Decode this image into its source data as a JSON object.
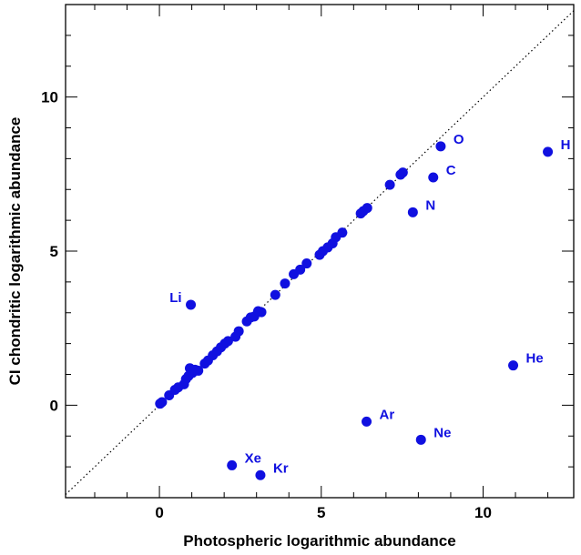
{
  "chart_data": {
    "type": "scatter",
    "title": "",
    "xlabel": "Photospheric logarithmic abundance",
    "ylabel": "CI chondritic logarithmic abundance",
    "xlim": [
      -2.9,
      12.8
    ],
    "ylim": [
      -3.0,
      13.0
    ],
    "xticks": [
      0,
      5,
      10
    ],
    "yticks": [
      0,
      5,
      10
    ],
    "reference_line": {
      "style": "dotted",
      "slope": 1,
      "intercept": 0
    },
    "marker_color": "#1010e0",
    "labeled_points": [
      {
        "label": "H",
        "x": 12.0,
        "y": 8.22
      },
      {
        "label": "O",
        "x": 8.69,
        "y": 8.4
      },
      {
        "label": "C",
        "x": 8.46,
        "y": 7.39
      },
      {
        "label": "N",
        "x": 7.83,
        "y": 6.26
      },
      {
        "label": "Li",
        "x": 0.97,
        "y": 3.26
      },
      {
        "label": "He",
        "x": 10.93,
        "y": 1.29
      },
      {
        "label": "Ar",
        "x": 6.4,
        "y": -0.53
      },
      {
        "label": "Ne",
        "x": 8.08,
        "y": -1.12
      },
      {
        "label": "Xe",
        "x": 2.24,
        "y": -1.95
      },
      {
        "label": "Kr",
        "x": 3.12,
        "y": -2.27
      }
    ],
    "points": [
      {
        "x": 0.02,
        "y": 0.05
      },
      {
        "x": 0.08,
        "y": 0.1
      },
      {
        "x": 0.3,
        "y": 0.32
      },
      {
        "x": 0.48,
        "y": 0.5
      },
      {
        "x": 0.58,
        "y": 0.58
      },
      {
        "x": 0.76,
        "y": 0.68
      },
      {
        "x": 0.82,
        "y": 0.85
      },
      {
        "x": 0.9,
        "y": 0.95
      },
      {
        "x": 0.94,
        "y": 1.2
      },
      {
        "x": 1.02,
        "y": 1.05
      },
      {
        "x": 1.1,
        "y": 1.15
      },
      {
        "x": 1.2,
        "y": 1.12
      },
      {
        "x": 1.4,
        "y": 1.35
      },
      {
        "x": 1.5,
        "y": 1.45
      },
      {
        "x": 1.65,
        "y": 1.62
      },
      {
        "x": 1.78,
        "y": 1.75
      },
      {
        "x": 1.9,
        "y": 1.88
      },
      {
        "x": 2.02,
        "y": 2.0
      },
      {
        "x": 2.12,
        "y": 2.08
      },
      {
        "x": 2.35,
        "y": 2.22
      },
      {
        "x": 2.45,
        "y": 2.4
      },
      {
        "x": 2.7,
        "y": 2.72
      },
      {
        "x": 2.82,
        "y": 2.85
      },
      {
        "x": 2.93,
        "y": 2.88
      },
      {
        "x": 3.05,
        "y": 3.05
      },
      {
        "x": 3.15,
        "y": 3.02
      },
      {
        "x": 3.58,
        "y": 3.58
      },
      {
        "x": 3.88,
        "y": 3.95
      },
      {
        "x": 4.15,
        "y": 4.25
      },
      {
        "x": 4.35,
        "y": 4.4
      },
      {
        "x": 4.55,
        "y": 4.6
      },
      {
        "x": 4.95,
        "y": 4.88
      },
      {
        "x": 5.05,
        "y": 5.0
      },
      {
        "x": 5.2,
        "y": 5.12
      },
      {
        "x": 5.35,
        "y": 5.25
      },
      {
        "x": 5.45,
        "y": 5.45
      },
      {
        "x": 5.65,
        "y": 5.6
      },
      {
        "x": 6.22,
        "y": 6.22
      },
      {
        "x": 6.3,
        "y": 6.3
      },
      {
        "x": 6.42,
        "y": 6.4
      },
      {
        "x": 7.12,
        "y": 7.15
      },
      {
        "x": 7.45,
        "y": 7.48
      },
      {
        "x": 7.52,
        "y": 7.55
      }
    ]
  }
}
